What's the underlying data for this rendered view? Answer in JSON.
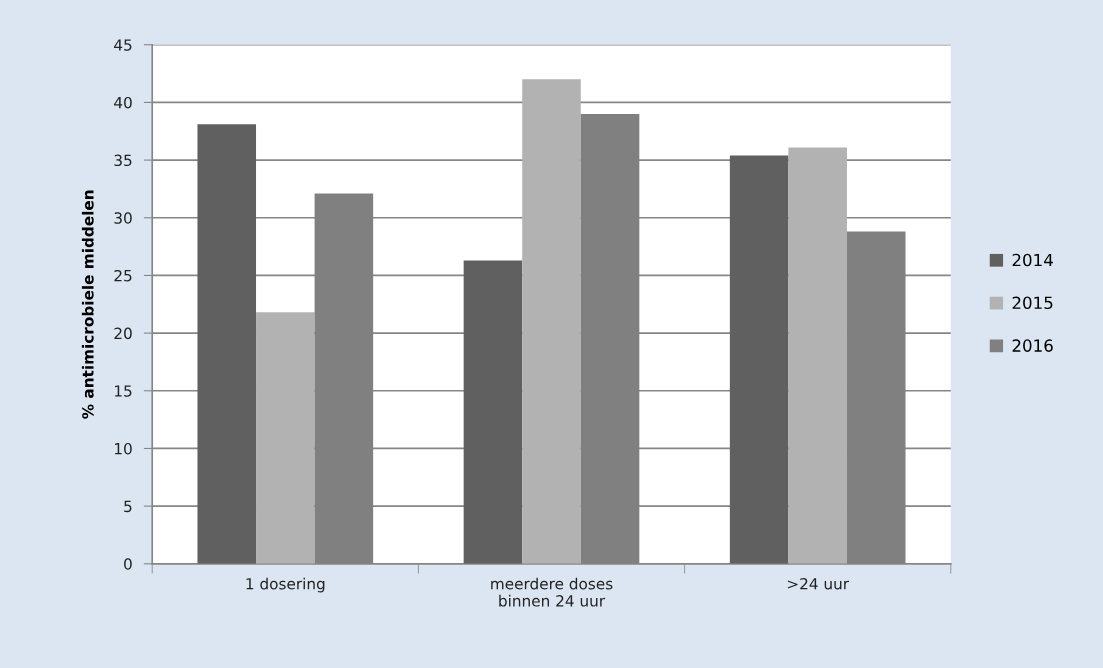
{
  "chart_data": {
    "type": "bar",
    "categories": [
      "1 dosering",
      "meerdere doses\nbinnen 24 uur",
      ">24 uur"
    ],
    "ylabel": "% antimicrobiele middelen",
    "series": [
      {
        "name": "2014",
        "color": "#606060",
        "values": [
          38.1,
          26.3,
          35.4
        ]
      },
      {
        "name": "2015",
        "color": "#b2b2b2",
        "values": [
          21.8,
          42.0,
          36.1
        ]
      },
      {
        "name": "2016",
        "color": "#808080",
        "values": [
          32.1,
          39.0,
          28.8
        ]
      }
    ],
    "ylim": [
      0,
      45
    ],
    "yticks": [
      0,
      5,
      10,
      15,
      20,
      25,
      30,
      35,
      40,
      45
    ],
    "grid": "y",
    "legend": "right"
  }
}
